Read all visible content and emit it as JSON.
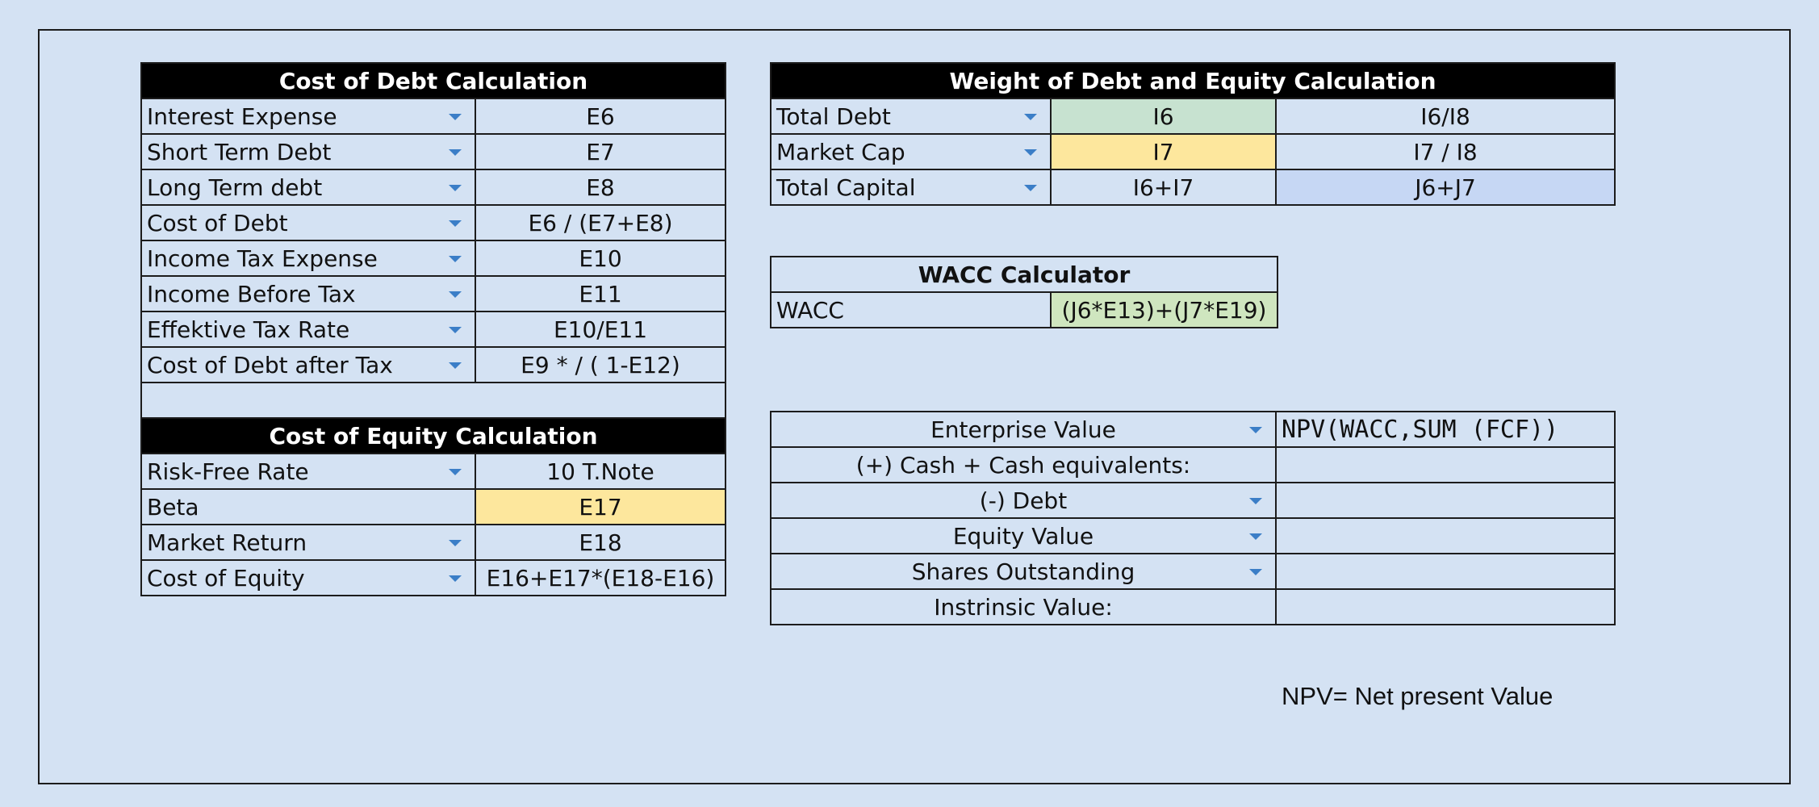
{
  "debt": {
    "title": "Cost of Debt Calculation",
    "rows": [
      {
        "label": "Interest Expense",
        "value": "E6"
      },
      {
        "label": "Short Term Debt",
        "value": "E7"
      },
      {
        "label": "Long Term debt",
        "value": "E8"
      },
      {
        "label": "Cost of Debt",
        "value": "E6 / (E7+E8)"
      },
      {
        "label": "Income Tax Expense",
        "value": "E10"
      },
      {
        "label": "Income Before Tax",
        "value": "E11"
      },
      {
        "label": "Effektive Tax Rate",
        "value": "E10/E11"
      },
      {
        "label": "Cost of Debt after Tax",
        "value": "E9 * / ( 1-E12)"
      }
    ]
  },
  "equity": {
    "title": "Cost of Equity Calculation",
    "rows": [
      {
        "label": "Risk-Free Rate",
        "value": "10 T.Note"
      },
      {
        "label": "Beta",
        "value": "E17"
      },
      {
        "label": "Market Return",
        "value": "E18"
      },
      {
        "label": "Cost of Equity",
        "value": "E16+E17*(E18-E16)"
      }
    ]
  },
  "weight": {
    "title": "Weight of Debt and Equity Calculation",
    "rows": [
      {
        "label": "Total Debt",
        "value": "I6",
        "weight": "I6/I8"
      },
      {
        "label": "Market Cap",
        "value": "I7",
        "weight": "I7 / I8"
      },
      {
        "label": "Total Capital",
        "value": "I6+I7",
        "weight": "J6+J7"
      }
    ]
  },
  "wacc": {
    "title": "WACC Calculator",
    "label": "WACC",
    "value": "(J6*E13)+(J7*E19)"
  },
  "valuation": {
    "rows": [
      {
        "label": "Enterprise Value",
        "value": "NPV(WACC,SUM (FCF))"
      },
      {
        "label": "(+) Cash + Cash equivalents:",
        "value": ""
      },
      {
        "label": "(-) Debt",
        "value": ""
      },
      {
        "label": "Equity Value",
        "value": ""
      },
      {
        "label": "Shares Outstanding",
        "value": ""
      },
      {
        "label": "Instrinsic Value:",
        "value": ""
      }
    ]
  },
  "note": "NPV= Net present Value",
  "colors": {
    "background": "#d4e2f3",
    "header": "#000000",
    "green_cell": "#c7e2d0",
    "yellow_cell": "#fde79d",
    "blue_cell": "#c6d7f4",
    "wacc_cell": "#cfe6bf",
    "dropdown_arrow": "#3b7ec7"
  }
}
